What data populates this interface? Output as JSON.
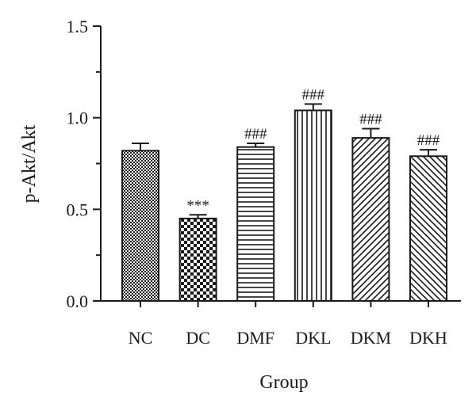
{
  "chart_data": {
    "type": "bar",
    "title": "",
    "xlabel": "Group",
    "ylabel": "p-Akt/Akt",
    "ylim": [
      0,
      1.5
    ],
    "yticks": [
      "0.0",
      "0.5",
      "1.0",
      "1.5"
    ],
    "categories": [
      "NC",
      "DC",
      "DMF",
      "DKL",
      "DKM",
      "DKH"
    ],
    "values": [
      0.82,
      0.45,
      0.84,
      1.04,
      0.89,
      0.79
    ],
    "errors": [
      0.04,
      0.02,
      0.02,
      0.035,
      0.05,
      0.035
    ],
    "annotations": [
      "",
      "***",
      "###",
      "###",
      "###",
      "###"
    ],
    "patterns": [
      "fine-checker",
      "coarse-checker",
      "horizontal-lines",
      "vertical-lines",
      "diagonal-up",
      "diagonal-down"
    ],
    "grid": false,
    "colors": {
      "ink": "#1a1a1a",
      "background": "#ffffff"
    }
  }
}
